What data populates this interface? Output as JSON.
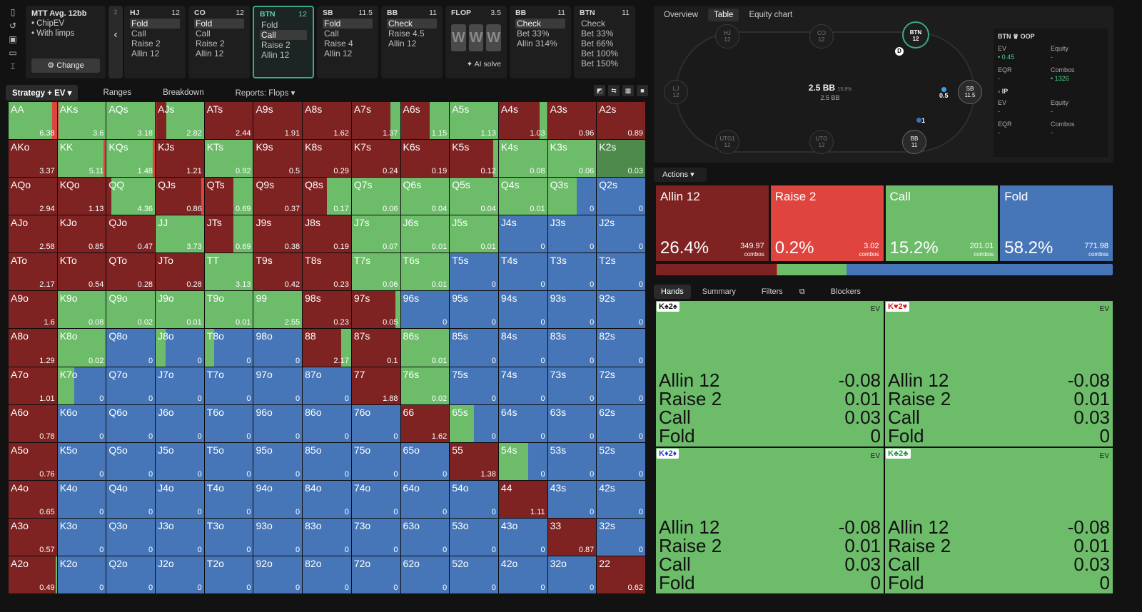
{
  "mtt": {
    "title": "MTT Avg. 12bb",
    "line1": "ChipEV",
    "line2": "With limps",
    "change": "Change"
  },
  "nav": {
    "num": "2",
    "arrow": "‹"
  },
  "seats": [
    {
      "pos": "HJ",
      "stack": "12",
      "actions": [
        "Fold",
        "Call",
        "Raise 2",
        "Allin 12"
      ],
      "on": 0,
      "sel": false
    },
    {
      "pos": "CO",
      "stack": "12",
      "actions": [
        "Fold",
        "Call",
        "Raise 2",
        "Allin 12"
      ],
      "on": 0,
      "sel": false
    },
    {
      "pos": "BTN",
      "stack": "12",
      "actions": [
        "Fold",
        "Call",
        "Raise 2",
        "Allin 12"
      ],
      "on": 1,
      "sel": true
    },
    {
      "pos": "SB",
      "stack": "11.5",
      "actions": [
        "Fold",
        "Call",
        "Raise 4",
        "Allin 12"
      ],
      "on": 0,
      "sel": false
    },
    {
      "pos": "BB",
      "stack": "11",
      "actions": [
        "Check",
        "Raise 4.5",
        "Allin 12"
      ],
      "on": 0,
      "sel": false
    },
    {
      "pos": "FLOP",
      "stack": "3.5",
      "cards": [
        "W",
        "W",
        "W"
      ],
      "ai": "AI solve",
      "flop": true
    },
    {
      "pos": "BB",
      "stack": "11",
      "actions": [
        "Check",
        "Bet 33%",
        "Allin 314%"
      ],
      "on": 0,
      "sel": false
    },
    {
      "pos": "BTN",
      "stack": "11",
      "actions": [
        "Check",
        "Bet 33%",
        "Bet 66%",
        "Bet 100%",
        "Bet 150%"
      ],
      "on": -1,
      "sel": false
    }
  ],
  "tabs1": [
    "Strategy + EV",
    "Ranges",
    "Breakdown",
    "Reports: Flops"
  ],
  "colors": {
    "allin": "#7e2222",
    "raise": "#e0443f",
    "call": "#6cbc6a",
    "fold": "#4776b8"
  },
  "grid": [
    [
      [
        "AA",
        6.38,
        "c:90,r:10"
      ],
      [
        "AKs",
        3.6,
        "r:2,c:98"
      ],
      [
        "AQs",
        3.18,
        "c:100"
      ],
      [
        "AJs",
        2.82,
        "r:2,a:20,c:78"
      ],
      [
        "ATs",
        2.44,
        "a"
      ],
      [
        "A9s",
        1.91,
        "a"
      ],
      [
        "A8s",
        1.62,
        "a"
      ],
      [
        "A7s",
        1.37,
        "a:80,c:20"
      ],
      [
        "A6s",
        1.15,
        "a:60,c:40"
      ],
      [
        "A5s",
        1.13,
        "c"
      ],
      [
        "A4s",
        1.03,
        "a:85,c:15"
      ],
      [
        "A3s",
        0.96,
        "a"
      ],
      [
        "A2s",
        0.89,
        "a"
      ]
    ],
    [
      [
        "AKo",
        3.37,
        "a"
      ],
      [
        "KK",
        5.11,
        "c:95,r:5"
      ],
      [
        "KQs",
        1.48,
        "c:95,r:5"
      ],
      [
        "KJs",
        1.21,
        "a"
      ],
      [
        "KTs",
        0.92,
        "c"
      ],
      [
        "K9s",
        0.5,
        "a"
      ],
      [
        "K8s",
        0.29,
        "a"
      ],
      [
        "K7s",
        0.24,
        "a"
      ],
      [
        "K6s",
        0.19,
        "a"
      ],
      [
        "K5s",
        0.12,
        "a:90,c:10"
      ],
      [
        "K4s",
        0.08,
        "c"
      ],
      [
        "K3s",
        0.06,
        "c"
      ],
      [
        "K2s",
        0.03,
        "d"
      ]
    ],
    [
      [
        "AQo",
        2.94,
        "a"
      ],
      [
        "KQo",
        1.13,
        "a"
      ],
      [
        "QQ",
        4.36,
        "a:10,c:90"
      ],
      [
        "QJs",
        0.86,
        "a:95,r:5"
      ],
      [
        "QTs",
        0.69,
        "a:60,c:40"
      ],
      [
        "Q9s",
        0.37,
        "a"
      ],
      [
        "Q8s",
        0.17,
        "a:50,c:50"
      ],
      [
        "Q7s",
        0.06,
        "c"
      ],
      [
        "Q6s",
        0.04,
        "c"
      ],
      [
        "Q5s",
        0.04,
        "c"
      ],
      [
        "Q4s",
        0.01,
        "c"
      ],
      [
        "Q3s",
        0,
        "c:60,f:40"
      ],
      [
        "Q2s",
        0,
        "f"
      ]
    ],
    [
      [
        "AJo",
        2.58,
        "a"
      ],
      [
        "KJo",
        0.85,
        "a"
      ],
      [
        "QJo",
        0.47,
        "a"
      ],
      [
        "JJ",
        3.73,
        "c"
      ],
      [
        "JTs",
        0.69,
        "a:60,c:40"
      ],
      [
        "J9s",
        0.38,
        "a"
      ],
      [
        "J8s",
        0.19,
        "a"
      ],
      [
        "J7s",
        0.07,
        "c"
      ],
      [
        "J6s",
        0.01,
        "c"
      ],
      [
        "J5s",
        0.01,
        "c"
      ],
      [
        "J4s",
        0,
        "f"
      ],
      [
        "J3s",
        0,
        "f"
      ],
      [
        "J2s",
        0,
        "f"
      ]
    ],
    [
      [
        "ATo",
        2.17,
        "a"
      ],
      [
        "KTo",
        0.54,
        "a"
      ],
      [
        "QTo",
        0.28,
        "a"
      ],
      [
        "JTo",
        0.28,
        "a"
      ],
      [
        "TT",
        3.13,
        "c"
      ],
      [
        "T9s",
        0.42,
        "a"
      ],
      [
        "T8s",
        0.23,
        "a"
      ],
      [
        "T7s",
        0.06,
        "c"
      ],
      [
        "T6s",
        0.01,
        "c"
      ],
      [
        "T5s",
        0,
        "f"
      ],
      [
        "T4s",
        0,
        "f"
      ],
      [
        "T3s",
        0,
        "f"
      ],
      [
        "T2s",
        0,
        "f"
      ]
    ],
    [
      [
        "A9o",
        1.6,
        "a"
      ],
      [
        "K9o",
        0.08,
        "c"
      ],
      [
        "Q9o",
        0.02,
        "c"
      ],
      [
        "J9o",
        0.01,
        "c"
      ],
      [
        "T9o",
        0.01,
        "c"
      ],
      [
        "99",
        2.55,
        "c"
      ],
      [
        "98s",
        0.23,
        "a"
      ],
      [
        "97s",
        0.05,
        "a:90,c:10"
      ],
      [
        "96s",
        0,
        "f"
      ],
      [
        "95s",
        0,
        "f"
      ],
      [
        "94s",
        0,
        "f"
      ],
      [
        "93s",
        0,
        "f"
      ],
      [
        "92s",
        0,
        "f"
      ]
    ],
    [
      [
        "A8o",
        1.29,
        "a"
      ],
      [
        "K8o",
        0.02,
        "c"
      ],
      [
        "Q8o",
        0,
        "f"
      ],
      [
        "J8o",
        0,
        "c:20,f:80"
      ],
      [
        "T8o",
        0,
        "c:20,f:80"
      ],
      [
        "98o",
        0,
        "f"
      ],
      [
        "88",
        2.17,
        "a:80,c:20"
      ],
      [
        "87s",
        0.1,
        "a"
      ],
      [
        "86s",
        0.01,
        "c"
      ],
      [
        "85s",
        0,
        "f"
      ],
      [
        "84s",
        0,
        "f"
      ],
      [
        "83s",
        0,
        "f"
      ],
      [
        "82s",
        0,
        "f"
      ]
    ],
    [
      [
        "A7o",
        1.01,
        "a"
      ],
      [
        "K7o",
        0,
        "c:35,f:65"
      ],
      [
        "Q7o",
        0,
        "f"
      ],
      [
        "J7o",
        0,
        "f"
      ],
      [
        "T7o",
        0,
        "f"
      ],
      [
        "97o",
        0,
        "f"
      ],
      [
        "87o",
        0,
        "f"
      ],
      [
        "77",
        1.88,
        "a"
      ],
      [
        "76s",
        0.02,
        "c"
      ],
      [
        "75s",
        0,
        "f"
      ],
      [
        "74s",
        0,
        "f"
      ],
      [
        "73s",
        0,
        "f"
      ],
      [
        "72s",
        0,
        "f"
      ]
    ],
    [
      [
        "A6o",
        0.78,
        "a"
      ],
      [
        "K6o",
        0,
        "f"
      ],
      [
        "Q6o",
        0,
        "f"
      ],
      [
        "J6o",
        0,
        "f"
      ],
      [
        "T6o",
        0,
        "f"
      ],
      [
        "96o",
        0,
        "f"
      ],
      [
        "86o",
        0,
        "f"
      ],
      [
        "76o",
        0,
        "f"
      ],
      [
        "66",
        1.62,
        "a"
      ],
      [
        "65s",
        0,
        "c:50,f:50"
      ],
      [
        "64s",
        0,
        "f"
      ],
      [
        "63s",
        0,
        "f"
      ],
      [
        "62s",
        0,
        "f"
      ]
    ],
    [
      [
        "A5o",
        0.76,
        "a"
      ],
      [
        "K5o",
        0,
        "f"
      ],
      [
        "Q5o",
        0,
        "f"
      ],
      [
        "J5o",
        0,
        "f"
      ],
      [
        "T5o",
        0,
        "f"
      ],
      [
        "95o",
        0,
        "f"
      ],
      [
        "85o",
        0,
        "f"
      ],
      [
        "75o",
        0,
        "f"
      ],
      [
        "65o",
        0,
        "f"
      ],
      [
        "55",
        1.38,
        "a"
      ],
      [
        "54s",
        0,
        "c:60,f:40"
      ],
      [
        "53s",
        0,
        "f"
      ],
      [
        "52s",
        0,
        "f"
      ]
    ],
    [
      [
        "A4o",
        0.65,
        "a"
      ],
      [
        "K4o",
        0,
        "f"
      ],
      [
        "Q4o",
        0,
        "f"
      ],
      [
        "J4o",
        0,
        "f"
      ],
      [
        "T4o",
        0,
        "f"
      ],
      [
        "94o",
        0,
        "f"
      ],
      [
        "84o",
        0,
        "f"
      ],
      [
        "74o",
        0,
        "f"
      ],
      [
        "64o",
        0,
        "f"
      ],
      [
        "54o",
        0,
        "f"
      ],
      [
        "44",
        1.11,
        "a"
      ],
      [
        "43s",
        0,
        "f"
      ],
      [
        "42s",
        0,
        "f"
      ]
    ],
    [
      [
        "A3o",
        0.57,
        "a"
      ],
      [
        "K3o",
        0,
        "f"
      ],
      [
        "Q3o",
        0,
        "f"
      ],
      [
        "J3o",
        0,
        "f"
      ],
      [
        "T3o",
        0,
        "f"
      ],
      [
        "93o",
        0,
        "f"
      ],
      [
        "83o",
        0,
        "f"
      ],
      [
        "73o",
        0,
        "f"
      ],
      [
        "63o",
        0,
        "f"
      ],
      [
        "53o",
        0,
        "f"
      ],
      [
        "43o",
        0,
        "f"
      ],
      [
        "33",
        0.87,
        "a"
      ],
      [
        "32s",
        0,
        "f"
      ]
    ],
    [
      [
        "A2o",
        0.49,
        "a:97,c:3"
      ],
      [
        "K2o",
        0,
        "f"
      ],
      [
        "Q2o",
        0,
        "f"
      ],
      [
        "J2o",
        0,
        "f"
      ],
      [
        "T2o",
        0,
        "f"
      ],
      [
        "92o",
        0,
        "f"
      ],
      [
        "82o",
        0,
        "f"
      ],
      [
        "72o",
        0,
        "f"
      ],
      [
        "62o",
        0,
        "f"
      ],
      [
        "52o",
        0,
        "f"
      ],
      [
        "42o",
        0,
        "f"
      ],
      [
        "32o",
        0,
        "f"
      ],
      [
        "22",
        0.62,
        "a"
      ]
    ]
  ],
  "rp": {
    "tabs": [
      "Overview",
      "Table",
      "Equity chart"
    ],
    "pot": "2.5 BB",
    "pot_pct": "15.9%",
    "pot2": "2.5 BB",
    "dealer": "D",
    "sb_bet": "0.5",
    "bb_bet": "1",
    "seats": {
      "hj": [
        "HJ",
        "12"
      ],
      "co": [
        "CO",
        "12"
      ],
      "btn": [
        "BTN",
        "12"
      ],
      "lj": [
        "LJ",
        "12"
      ],
      "sb": [
        "SB",
        "11.5"
      ],
      "utg1": [
        "UTG1",
        "12"
      ],
      "utg": [
        "UTG",
        "12"
      ],
      "bb": [
        "BB",
        "11"
      ]
    },
    "btn_info": {
      "title": "BTN ♛ OOP",
      "ev_l": "EV",
      "ev": "0.45",
      "eq_l": "Equity",
      "eq": "-",
      "eqr_l": "EQR",
      "eqr": "-",
      "cmb_l": "Combos",
      "cmb": "1326"
    },
    "ip_info": {
      "title": "IP",
      "ev_l": "EV",
      "ev": "-",
      "eq_l": "Equity",
      "eq": "-",
      "eqr_l": "EQR",
      "eqr": "-",
      "cmb_l": "Combos",
      "cmb": "-"
    }
  },
  "actions_label": "Actions",
  "actions": [
    {
      "name": "Allin 12",
      "pct": "26.4%",
      "combos": "349.97",
      "color": "#7e2222"
    },
    {
      "name": "Raise 2",
      "pct": "0.2%",
      "combos": "3.02",
      "color": "#e0443f"
    },
    {
      "name": "Call",
      "pct": "15.2%",
      "combos": "201.01",
      "color": "#6cbc6a"
    },
    {
      "name": "Fold",
      "pct": "58.2%",
      "combos": "771.98",
      "color": "#4776b8"
    }
  ],
  "combos_word": "combos",
  "freq": [
    {
      "w": 26.4,
      "c": "#7e2222"
    },
    {
      "w": 0.2,
      "c": "#e0443f"
    },
    {
      "w": 15.2,
      "c": "#6cbc6a"
    },
    {
      "w": 58.2,
      "c": "#4776b8"
    }
  ],
  "tabs2": [
    "Hands",
    "Summary",
    "Filters",
    "Blockers"
  ],
  "hands": [
    {
      "card": "K♠2♠",
      "color": "#111"
    },
    {
      "card": "K♥2♥",
      "color": "#d01d1d"
    },
    {
      "card": "K♦2♦",
      "color": "#1e3bd0"
    },
    {
      "card": "K♣2♣",
      "color": "#169a35"
    }
  ],
  "hand_rows": [
    [
      "Allin 12",
      "-0.08"
    ],
    [
      "Raise 2",
      "0.01"
    ],
    [
      "Call",
      "0.03"
    ],
    [
      "Fold",
      "0"
    ]
  ],
  "ev_label": "EV"
}
